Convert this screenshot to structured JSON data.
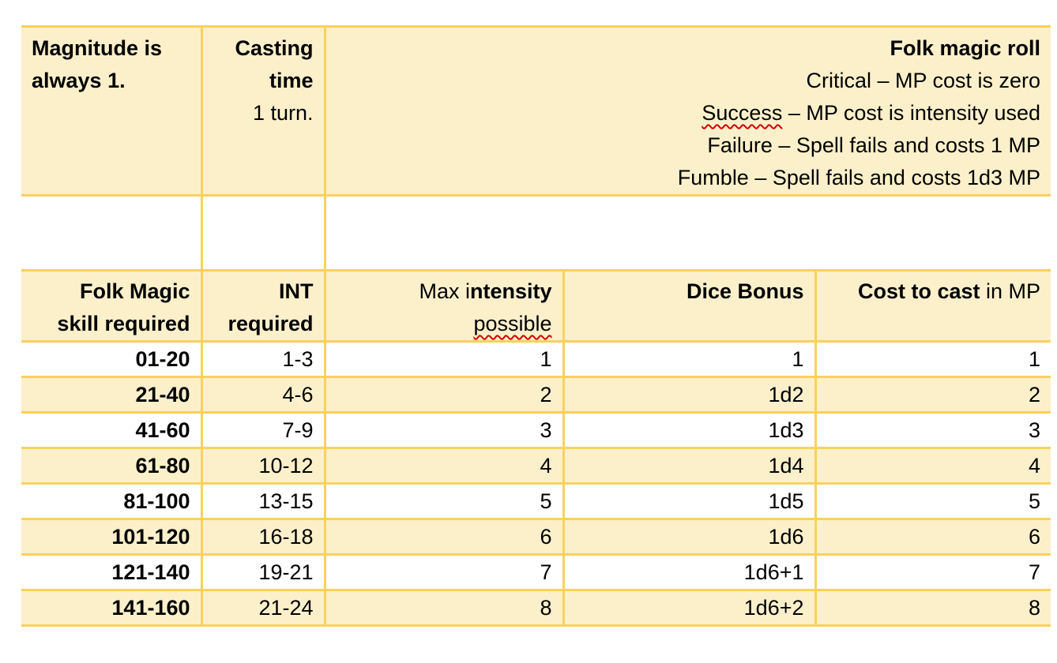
{
  "colors": {
    "cell_fill": "#FCF0CB",
    "grid_border": "#FAD15C",
    "squiggle": "#D40000",
    "text": "#000000",
    "page_bg": "#FFFFFF"
  },
  "top": {
    "magnitude_note": "Magnitude is always 1.",
    "casting_time_label": "Casting time",
    "casting_time_value": "1 turn.",
    "roll_title": "Folk magic roll",
    "roll_lines": [
      {
        "text": "Critical – MP cost is zero"
      },
      {
        "lead": "Success",
        "lead_squiggle": true,
        "rest": " – MP cost is intensity used"
      },
      {
        "text": "Failure – Spell fails and costs 1 MP"
      },
      {
        "text": "Fumble – Spell fails and costs 1d3 MP"
      }
    ]
  },
  "table": {
    "header": [
      {
        "id": "skill",
        "lines": [
          [
            {
              "t": "Folk Magic",
              "b": true
            }
          ],
          [
            {
              "t": "skill required",
              "b": true
            }
          ]
        ]
      },
      {
        "id": "int",
        "lines": [
          [
            {
              "t": "INT",
              "b": true
            }
          ],
          [
            {
              "t": "required",
              "b": true
            }
          ]
        ]
      },
      {
        "id": "intensity",
        "lines": [
          [
            {
              "t": "Max i",
              "b": false
            },
            {
              "t": "ntensity",
              "b": true
            }
          ],
          [
            {
              "t": "possible",
              "b": false,
              "sq": true
            }
          ]
        ]
      },
      {
        "id": "dice",
        "lines": [
          [
            {
              "t": "Dice Bonus",
              "b": true
            }
          ]
        ]
      },
      {
        "id": "cost",
        "lines": [
          [
            {
              "t": "Cost to cast",
              "b": true
            },
            {
              "t": " in MP",
              "b": false
            }
          ]
        ]
      }
    ],
    "rows": [
      {
        "skill": "01-20",
        "int": "1-3",
        "max_intensity": "1",
        "dice_bonus": "1",
        "cost": "1"
      },
      {
        "skill": "21-40",
        "int": "4-6",
        "max_intensity": "2",
        "dice_bonus": "1d2",
        "cost": "2"
      },
      {
        "skill": "41-60",
        "int": "7-9",
        "max_intensity": "3",
        "dice_bonus": "1d3",
        "cost": "3"
      },
      {
        "skill": "61-80",
        "int": "10-12",
        "max_intensity": "4",
        "dice_bonus": "1d4",
        "cost": "4"
      },
      {
        "skill": "81-100",
        "int": "13-15",
        "max_intensity": "5",
        "dice_bonus": "1d5",
        "cost": "5"
      },
      {
        "skill": "101-120",
        "int": "16-18",
        "max_intensity": "6",
        "dice_bonus": "1d6",
        "cost": "6"
      },
      {
        "skill": "121-140",
        "int": "19-21",
        "max_intensity": "7",
        "dice_bonus": "1d6+1",
        "cost": "7"
      },
      {
        "skill": "141-160",
        "int": "21-24",
        "max_intensity": "8",
        "dice_bonus": "1d6+2",
        "cost": "8"
      }
    ]
  }
}
